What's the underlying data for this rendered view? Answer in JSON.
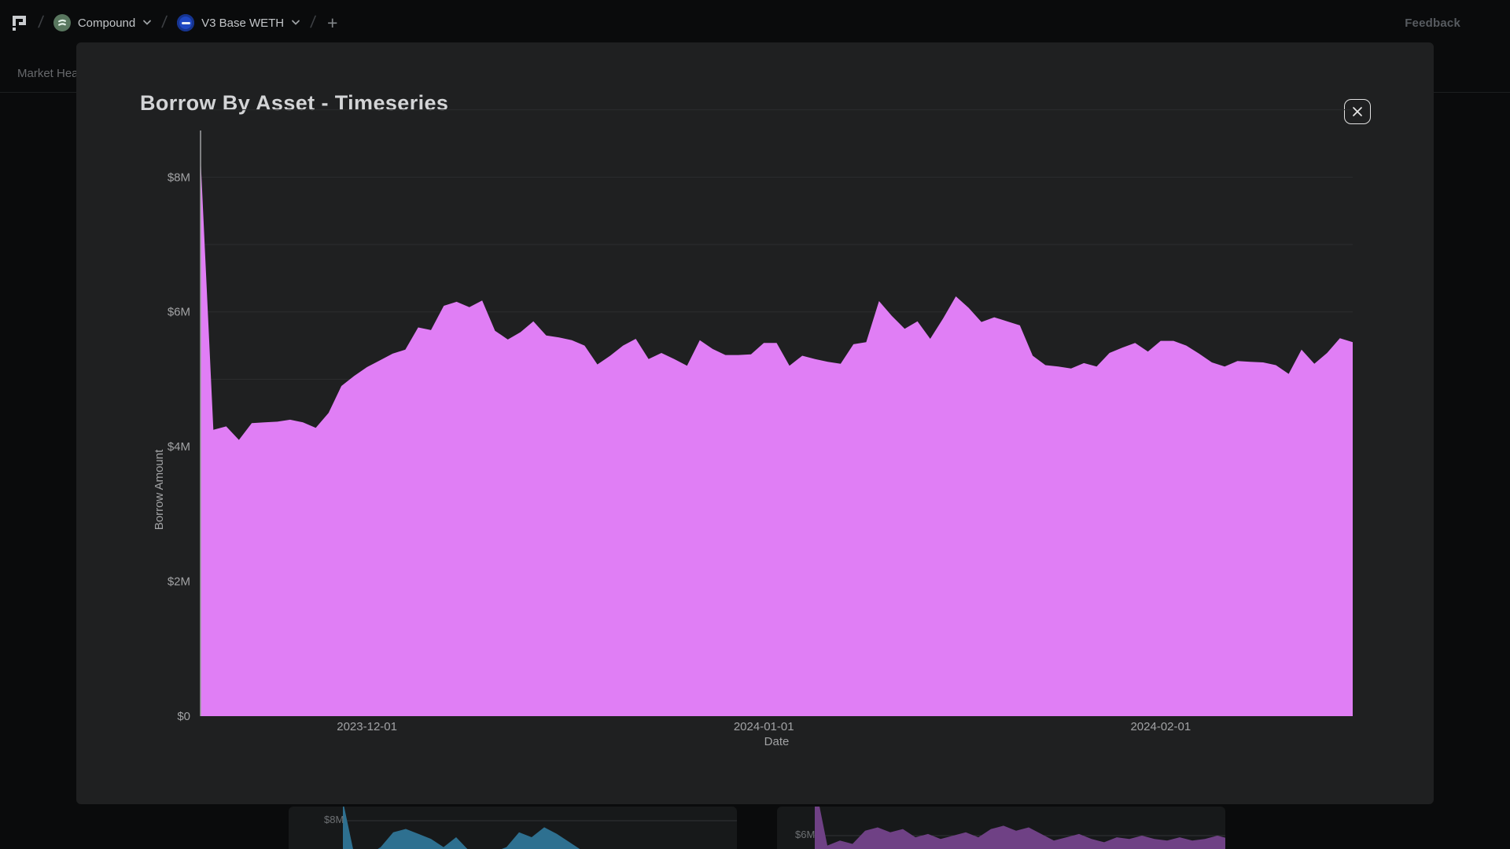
{
  "header": {
    "logo_name": "gauntlet-logo",
    "breadcrumbs": [
      {
        "label": "Compound",
        "icon": "compound-icon"
      },
      {
        "label": "V3 Base WETH",
        "icon": "base-weth-icon"
      }
    ],
    "add_label": "+",
    "feedback_label": "Feedback"
  },
  "subnav": {
    "active_tab": "Market Health"
  },
  "modal": {
    "title": "Borrow By Asset - Timeseries"
  },
  "chart_data": {
    "type": "area",
    "title": "Borrow By Asset - Timeseries",
    "xlabel": "Date",
    "ylabel": "Borrow Amount",
    "unit": "USD millions",
    "fill_color": "#e07ef5",
    "grid_color": "#2b2c2e",
    "axis_line_color": "#9fa0a2",
    "tick_text_color": "#a2a3a5",
    "ylim": [
      0,
      8.3
    ],
    "gridline_step_musd": 1,
    "y_ticks": {
      "values": [
        0,
        2,
        4,
        6,
        8
      ],
      "labels": [
        "$0",
        "$2M",
        "$4M",
        "$6M",
        "$8M"
      ]
    },
    "x_tick_labels": [
      "2023-12-01",
      "2024-01-01",
      "2024-02-01"
    ],
    "legend": "none",
    "dates": [
      "2023-11-18",
      "2023-11-19",
      "2023-11-20",
      "2023-11-21",
      "2023-11-22",
      "2023-11-23",
      "2023-11-24",
      "2023-11-25",
      "2023-11-26",
      "2023-11-27",
      "2023-11-28",
      "2023-11-29",
      "2023-11-30",
      "2023-12-01",
      "2023-12-02",
      "2023-12-03",
      "2023-12-04",
      "2023-12-05",
      "2023-12-06",
      "2023-12-07",
      "2023-12-08",
      "2023-12-09",
      "2023-12-10",
      "2023-12-11",
      "2023-12-12",
      "2023-12-13",
      "2023-12-14",
      "2023-12-15",
      "2023-12-16",
      "2023-12-17",
      "2023-12-18",
      "2023-12-19",
      "2023-12-20",
      "2023-12-21",
      "2023-12-22",
      "2023-12-23",
      "2023-12-24",
      "2023-12-25",
      "2023-12-26",
      "2023-12-27",
      "2023-12-28",
      "2023-12-29",
      "2023-12-30",
      "2023-12-31",
      "2024-01-01",
      "2024-01-02",
      "2024-01-03",
      "2024-01-04",
      "2024-01-05",
      "2024-01-06",
      "2024-01-07",
      "2024-01-08",
      "2024-01-09",
      "2024-01-10",
      "2024-01-11",
      "2024-01-12",
      "2024-01-13",
      "2024-01-14",
      "2024-01-15",
      "2024-01-16",
      "2024-01-17",
      "2024-01-18",
      "2024-01-19",
      "2024-01-20",
      "2024-01-21",
      "2024-01-22",
      "2024-01-23",
      "2024-01-24",
      "2024-01-25",
      "2024-01-26",
      "2024-01-27",
      "2024-01-28",
      "2024-01-29",
      "2024-01-30",
      "2024-01-31",
      "2024-02-01",
      "2024-02-02",
      "2024-02-03",
      "2024-02-04",
      "2024-02-05",
      "2024-02-06",
      "2024-02-07",
      "2024-02-08",
      "2024-02-09",
      "2024-02-10",
      "2024-02-11",
      "2024-02-12",
      "2024-02-13",
      "2024-02-14",
      "2024-02-15",
      "2024-02-16"
    ],
    "values_musd": [
      8.3,
      4.25,
      4.3,
      4.1,
      4.35,
      4.36,
      4.37,
      4.4,
      4.36,
      4.28,
      4.5,
      4.9,
      5.05,
      5.18,
      5.28,
      5.38,
      5.44,
      5.77,
      5.73,
      6.09,
      6.15,
      6.07,
      6.17,
      5.72,
      5.59,
      5.7,
      5.86,
      5.65,
      5.62,
      5.58,
      5.5,
      5.22,
      5.35,
      5.5,
      5.6,
      5.3,
      5.39,
      5.3,
      5.2,
      5.58,
      5.45,
      5.36,
      5.36,
      5.37,
      5.54,
      5.54,
      5.2,
      5.35,
      5.3,
      5.26,
      5.23,
      5.52,
      5.55,
      6.16,
      5.94,
      5.75,
      5.86,
      5.6,
      5.9,
      6.23,
      6.06,
      5.85,
      5.92,
      5.86,
      5.8,
      5.35,
      5.21,
      5.19,
      5.16,
      5.24,
      5.19,
      5.39,
      5.47,
      5.54,
      5.41,
      5.57,
      5.57,
      5.5,
      5.38,
      5.25,
      5.19,
      5.27,
      5.26,
      5.25,
      5.21,
      5.08,
      5.44,
      5.23,
      5.39,
      5.61,
      5.55
    ]
  },
  "background_charts": [
    {
      "y_axis_label": "$8M",
      "ref_value_musd": 8,
      "color": "#2e7090",
      "values_musd": [
        9.2,
        5.6,
        5.9,
        6.4,
        7.3,
        7.5,
        7.2,
        6.9,
        6.4,
        7.0,
        6.2,
        6.0,
        6.1,
        6.4,
        7.3,
        7.0,
        7.6,
        7.2,
        6.7,
        6.2,
        6.0,
        6.2,
        5.9,
        6.1,
        6.2,
        6.0,
        5.9,
        6.1,
        6.0,
        6.2,
        6.1,
        6.0
      ]
    },
    {
      "y_axis_label": "$6M",
      "ref_value_musd": 6,
      "color": "#6f4185",
      "values_musd": [
        9.2,
        5.4,
        5.7,
        5.5,
        6.3,
        6.5,
        6.2,
        6.4,
        5.9,
        6.1,
        5.8,
        6.0,
        6.2,
        5.9,
        6.4,
        6.6,
        6.3,
        6.5,
        6.1,
        5.7,
        5.9,
        6.1,
        5.8,
        5.6,
        5.9,
        5.8,
        6.0,
        5.8,
        5.7,
        5.9,
        5.7,
        5.8,
        6.0,
        5.8
      ]
    }
  ]
}
